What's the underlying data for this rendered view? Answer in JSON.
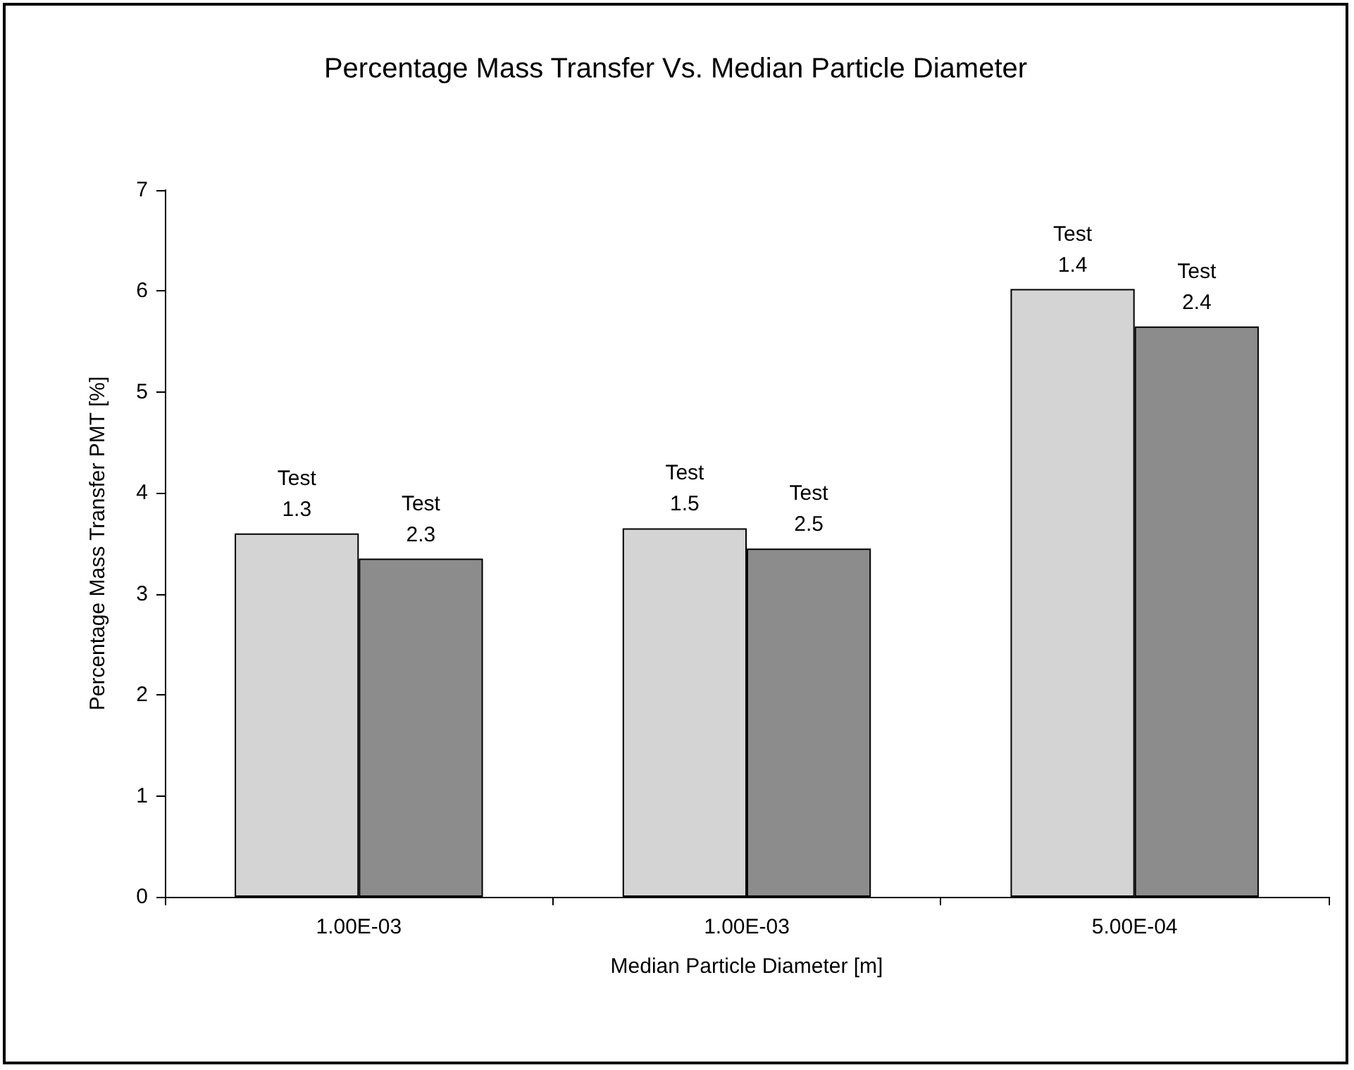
{
  "chart_data": {
    "type": "bar",
    "title": "Percentage Mass Transfer Vs. Median Particle Diameter",
    "xlabel": "Median Particle Diameter [m]",
    "ylabel": "Percentage Mass Transfer PMT [%]",
    "categories": [
      "1.00E-03",
      "1.00E-03",
      "5.00E-04"
    ],
    "series": [
      {
        "color": "#d4d4d4",
        "values": [
          3.6,
          3.65,
          6.02
        ],
        "value_labels": [
          "Test\n1.3",
          "Test\n1.5",
          "Test\n1.4"
        ]
      },
      {
        "color": "#8c8c8c",
        "values": [
          3.35,
          3.45,
          5.65
        ],
        "value_labels": [
          "Test\n2.3",
          "Test\n2.5",
          "Test\n2.4"
        ]
      }
    ],
    "ylim": [
      0,
      7
    ],
    "yticks": [
      0,
      1,
      2,
      3,
      4,
      5,
      6,
      7
    ]
  }
}
